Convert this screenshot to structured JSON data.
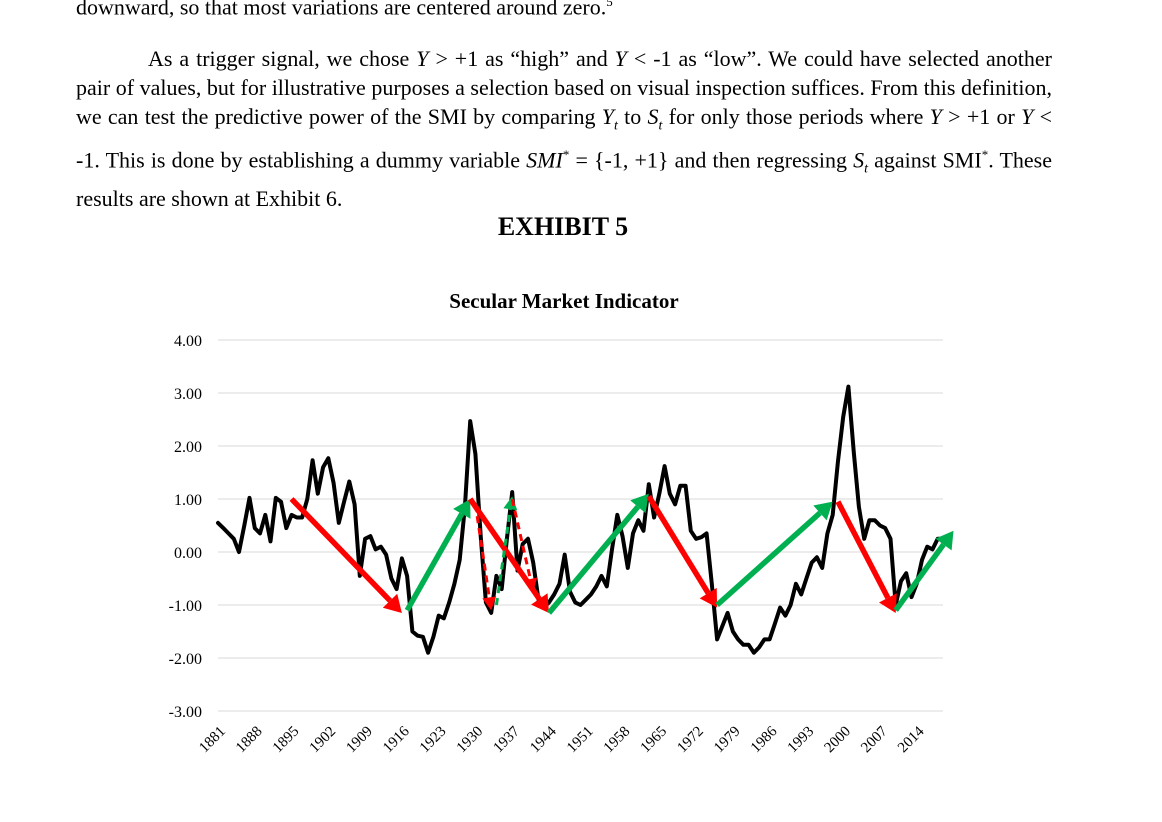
{
  "doc": {
    "top_line": {
      "text": "downward, so that most variations are centered around zero.",
      "footnote": "5"
    },
    "paragraph": [
      {
        "t": "As a trigger signal, we chose "
      },
      {
        "t": "Y",
        "i": true
      },
      {
        "t": " > +1 as “high” and "
      },
      {
        "t": "Y",
        "i": true
      },
      {
        "t": " < -1 as “low”.  We could have selected another pair of values, but for illustrative purposes a selection based on visual inspection suffices.  From this definition, we can test the predictive power of the SMI by comparing "
      },
      {
        "t": "Y",
        "i": true
      },
      {
        "t": "t",
        "sub": true
      },
      {
        "t": " to "
      },
      {
        "t": "S",
        "i": true
      },
      {
        "t": "t",
        "sub": true
      },
      {
        "t": " for only those periods where "
      },
      {
        "t": "Y",
        "i": true
      },
      {
        "t": " > +1 or "
      },
      {
        "t": "Y",
        "i": true
      },
      {
        "t": " < -1.  This is done by establishing a dummy variable "
      },
      {
        "t": "SMI",
        "i": true
      },
      {
        "t": "*",
        "sup": true
      },
      {
        "t": " = {-1, +1} and then regressing "
      },
      {
        "t": "S",
        "i": true
      },
      {
        "t": "t",
        "sub": true
      },
      {
        "t": "  against SMI"
      },
      {
        "t": "*",
        "sup": true
      },
      {
        "t": ".  These results are shown at Exhibit 6."
      }
    ],
    "exhibit_title": "EXHIBIT 5"
  },
  "chart_data": {
    "type": "line",
    "title": "Secular Market Indicator",
    "xlabel": "",
    "ylabel": "",
    "ylim": [
      -3,
      4
    ],
    "yticks": [
      "4.00",
      "3.00",
      "2.00",
      "1.00",
      "0.00",
      "-1.00",
      "-2.00",
      "-3.00"
    ],
    "xticks": [
      "1881",
      "1888",
      "1895",
      "1902",
      "1909",
      "1916",
      "1923",
      "1930",
      "1937",
      "1944",
      "1951",
      "1958",
      "1965",
      "1972",
      "1979",
      "1986",
      "1993",
      "2000",
      "2007",
      "2014"
    ],
    "xlim": [
      1881,
      2019
    ],
    "grid": true,
    "series": [
      {
        "color": "#000000",
        "points": [
          [
            1881,
            0.55
          ],
          [
            1882,
            0.45
          ],
          [
            1883,
            0.35
          ],
          [
            1884,
            0.25
          ],
          [
            1885,
            0.0
          ],
          [
            1886,
            0.5
          ],
          [
            1887,
            1.02
          ],
          [
            1888,
            0.45
          ],
          [
            1889,
            0.35
          ],
          [
            1890,
            0.7
          ],
          [
            1891,
            0.2
          ],
          [
            1892,
            1.02
          ],
          [
            1893,
            0.95
          ],
          [
            1894,
            0.45
          ],
          [
            1895,
            0.7
          ],
          [
            1896,
            0.65
          ],
          [
            1897,
            0.65
          ],
          [
            1898,
            1.0
          ],
          [
            1899,
            1.73
          ],
          [
            1900,
            1.1
          ],
          [
            1901,
            1.6
          ],
          [
            1902,
            1.77
          ],
          [
            1903,
            1.3
          ],
          [
            1904,
            0.55
          ],
          [
            1905,
            0.95
          ],
          [
            1906,
            1.33
          ],
          [
            1907,
            0.9
          ],
          [
            1908,
            -0.45
          ],
          [
            1909,
            0.25
          ],
          [
            1910,
            0.3
          ],
          [
            1911,
            0.05
          ],
          [
            1912,
            0.1
          ],
          [
            1913,
            -0.05
          ],
          [
            1914,
            -0.5
          ],
          [
            1915,
            -0.7
          ],
          [
            1916,
            -0.12
          ],
          [
            1917,
            -0.45
          ],
          [
            1918,
            -1.5
          ],
          [
            1919,
            -1.58
          ],
          [
            1920,
            -1.6
          ],
          [
            1921,
            -1.9
          ],
          [
            1922,
            -1.6
          ],
          [
            1923,
            -1.2
          ],
          [
            1924,
            -1.25
          ],
          [
            1925,
            -0.95
          ],
          [
            1926,
            -0.6
          ],
          [
            1927,
            -0.15
          ],
          [
            1928,
            0.85
          ],
          [
            1929,
            2.47
          ],
          [
            1930,
            1.85
          ],
          [
            1931,
            0.3
          ],
          [
            1932,
            -0.95
          ],
          [
            1933,
            -1.15
          ],
          [
            1934,
            -0.45
          ],
          [
            1935,
            -0.7
          ],
          [
            1936,
            0.25
          ],
          [
            1937,
            1.13
          ],
          [
            1938,
            -0.35
          ],
          [
            1939,
            0.15
          ],
          [
            1940,
            0.25
          ],
          [
            1941,
            -0.2
          ],
          [
            1942,
            -0.9
          ],
          [
            1943,
            -1.05
          ],
          [
            1944,
            -0.95
          ],
          [
            1945,
            -0.8
          ],
          [
            1946,
            -0.6
          ],
          [
            1947,
            -0.05
          ],
          [
            1948,
            -0.75
          ],
          [
            1949,
            -0.95
          ],
          [
            1950,
            -1.0
          ],
          [
            1951,
            -0.9
          ],
          [
            1952,
            -0.8
          ],
          [
            1953,
            -0.65
          ],
          [
            1954,
            -0.45
          ],
          [
            1955,
            -0.65
          ],
          [
            1956,
            0.05
          ],
          [
            1957,
            0.7
          ],
          [
            1958,
            0.3
          ],
          [
            1959,
            -0.3
          ],
          [
            1960,
            0.35
          ],
          [
            1961,
            0.6
          ],
          [
            1962,
            0.4
          ],
          [
            1963,
            1.28
          ],
          [
            1964,
            0.65
          ],
          [
            1965,
            1.1
          ],
          [
            1966,
            1.62
          ],
          [
            1967,
            1.1
          ],
          [
            1968,
            0.9
          ],
          [
            1969,
            1.25
          ],
          [
            1970,
            1.25
          ],
          [
            1971,
            0.4
          ],
          [
            1972,
            0.25
          ],
          [
            1973,
            0.28
          ],
          [
            1974,
            0.35
          ],
          [
            1975,
            -0.6
          ],
          [
            1976,
            -1.65
          ],
          [
            1977,
            -1.4
          ],
          [
            1978,
            -1.15
          ],
          [
            1979,
            -1.5
          ],
          [
            1980,
            -1.65
          ],
          [
            1981,
            -1.75
          ],
          [
            1982,
            -1.75
          ],
          [
            1983,
            -1.9
          ],
          [
            1984,
            -1.8
          ],
          [
            1985,
            -1.65
          ],
          [
            1986,
            -1.65
          ],
          [
            1987,
            -1.35
          ],
          [
            1988,
            -1.05
          ],
          [
            1989,
            -1.2
          ],
          [
            1990,
            -1.0
          ],
          [
            1991,
            -0.6
          ],
          [
            1992,
            -0.8
          ],
          [
            1993,
            -0.5
          ],
          [
            1994,
            -0.2
          ],
          [
            1995,
            -0.1
          ],
          [
            1996,
            -0.3
          ],
          [
            1997,
            0.35
          ],
          [
            1998,
            0.7
          ],
          [
            1999,
            1.7
          ],
          [
            2000,
            2.55
          ],
          [
            2001,
            3.12
          ],
          [
            2002,
            1.9
          ],
          [
            2003,
            0.85
          ],
          [
            2004,
            0.25
          ],
          [
            2005,
            0.6
          ],
          [
            2006,
            0.6
          ],
          [
            2007,
            0.5
          ],
          [
            2008,
            0.45
          ],
          [
            2009,
            0.25
          ],
          [
            2010,
            -1.0
          ],
          [
            2011,
            -0.55
          ],
          [
            2012,
            -0.4
          ],
          [
            2013,
            -0.85
          ],
          [
            2014,
            -0.6
          ],
          [
            2015,
            -0.15
          ],
          [
            2016,
            0.1
          ],
          [
            2017,
            0.05
          ],
          [
            2018,
            0.25
          ],
          [
            2019,
            0.25
          ]
        ]
      }
    ],
    "annotations": [
      {
        "kind": "arrow",
        "color": "#ff0000",
        "dashed": false,
        "from": [
          1895,
          1.0
        ],
        "to": [
          1916,
          -1.15
        ]
      },
      {
        "kind": "arrow",
        "color": "#00b050",
        "dashed": false,
        "from": [
          1917,
          -1.1
        ],
        "to": [
          1929,
          1.0
        ]
      },
      {
        "kind": "arrow",
        "color": "#ff0000",
        "dashed": false,
        "from": [
          1929,
          1.0
        ],
        "to": [
          1944,
          -1.15
        ]
      },
      {
        "kind": "arrow",
        "color": "#ff0000",
        "dashed": true,
        "from": [
          1930,
          0.9
        ],
        "to": [
          1933,
          -1.1
        ]
      },
      {
        "kind": "arrow",
        "color": "#00b050",
        "dashed": true,
        "from": [
          1934,
          -1.0
        ],
        "to": [
          1937,
          1.05
        ]
      },
      {
        "kind": "arrow",
        "color": "#ff0000",
        "dashed": true,
        "from": [
          1937,
          1.0
        ],
        "to": [
          1941,
          -0.75
        ]
      },
      {
        "kind": "arrow",
        "color": "#00b050",
        "dashed": false,
        "from": [
          1944,
          -1.15
        ],
        "to": [
          1963,
          1.1
        ]
      },
      {
        "kind": "arrow",
        "color": "#ff0000",
        "dashed": false,
        "from": [
          1963,
          1.05
        ],
        "to": [
          1976,
          -1.05
        ]
      },
      {
        "kind": "arrow",
        "color": "#00b050",
        "dashed": false,
        "from": [
          1976,
          -1.0
        ],
        "to": [
          1998,
          0.95
        ]
      },
      {
        "kind": "arrow",
        "color": "#ff0000",
        "dashed": false,
        "from": [
          1999,
          0.95
        ],
        "to": [
          2010,
          -1.15
        ]
      },
      {
        "kind": "arrow",
        "color": "#00b050",
        "dashed": false,
        "from": [
          2010,
          -1.1
        ],
        "to": [
          2021,
          0.4
        ]
      }
    ]
  }
}
